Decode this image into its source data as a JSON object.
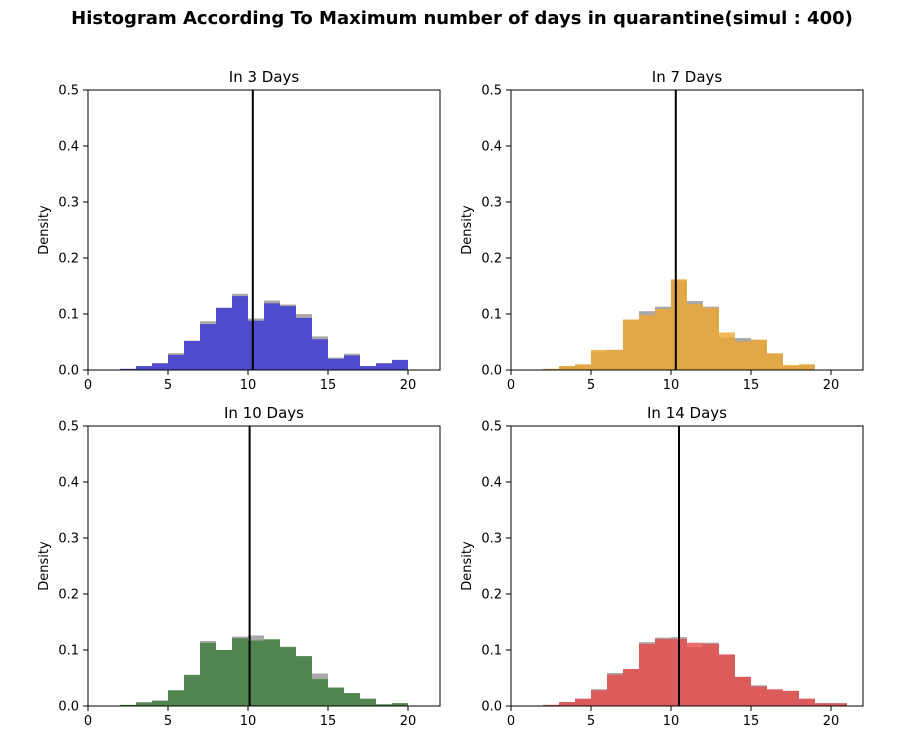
{
  "title": "Histogram According To Maximum number of days in quarantine(simul : 400)",
  "chart_data": [
    {
      "type": "bar",
      "title": "In 3 Days",
      "ylabel": "Density",
      "xlim": [
        0,
        22
      ],
      "ylim": [
        0,
        0.5
      ],
      "xticks": [
        0,
        5,
        10,
        15,
        20
      ],
      "yticks": [
        0.0,
        0.1,
        0.2,
        0.3,
        0.4,
        0.5
      ],
      "bin_edges": [
        1,
        2,
        3,
        4,
        5,
        6,
        7,
        8,
        9,
        10,
        11,
        12,
        13,
        14,
        15,
        16,
        17,
        18,
        19,
        20
      ],
      "series": [
        {
          "color": "#999999",
          "values": [
            0.0,
            0.002,
            0.007,
            0.012,
            0.03,
            0.052,
            0.087,
            0.111,
            0.136,
            0.092,
            0.124,
            0.117,
            0.1,
            0.06,
            0.022,
            0.029,
            0.007,
            0.012,
            0.018
          ]
        },
        {
          "color": "#3a33d6",
          "values": [
            0.0,
            0.002,
            0.007,
            0.012,
            0.027,
            0.052,
            0.082,
            0.111,
            0.132,
            0.088,
            0.119,
            0.114,
            0.093,
            0.055,
            0.02,
            0.026,
            0.007,
            0.012,
            0.018
          ]
        }
      ],
      "mean_line": 10.3
    },
    {
      "type": "bar",
      "title": "In 7 Days",
      "ylabel": "Density",
      "xlim": [
        0,
        22
      ],
      "ylim": [
        0,
        0.5
      ],
      "xticks": [
        0,
        5,
        10,
        15,
        20
      ],
      "yticks": [
        0.0,
        0.1,
        0.2,
        0.3,
        0.4,
        0.5
      ],
      "bin_edges": [
        1,
        2,
        3,
        4,
        5,
        6,
        7,
        8,
        9,
        10,
        11,
        12,
        13,
        14,
        15,
        16,
        17,
        18,
        19,
        20
      ],
      "series": [
        {
          "color": "#999999",
          "values": [
            0.0,
            0.002,
            0.007,
            0.01,
            0.033,
            0.036,
            0.09,
            0.105,
            0.113,
            0.16,
            0.123,
            0.113,
            0.058,
            0.057,
            0.054,
            0.029,
            0.007,
            0.01,
            0.0
          ]
        },
        {
          "color": "#f0a830",
          "values": [
            0.0,
            0.002,
            0.007,
            0.01,
            0.036,
            0.036,
            0.09,
            0.098,
            0.109,
            0.162,
            0.118,
            0.111,
            0.067,
            0.051,
            0.054,
            0.03,
            0.009,
            0.01,
            0.0
          ]
        }
      ],
      "mean_line": 10.3
    },
    {
      "type": "bar",
      "title": "In 10 Days",
      "ylabel": "Density",
      "xlim": [
        0,
        22
      ],
      "ylim": [
        0,
        0.5
      ],
      "xticks": [
        0,
        5,
        10,
        15,
        20
      ],
      "yticks": [
        0.0,
        0.1,
        0.2,
        0.3,
        0.4,
        0.5
      ],
      "bin_edges": [
        1,
        2,
        3,
        4,
        5,
        6,
        7,
        8,
        9,
        10,
        11,
        12,
        13,
        14,
        15,
        16,
        17,
        18,
        19,
        20
      ],
      "series": [
        {
          "color": "#999999",
          "values": [
            0.0,
            0.002,
            0.007,
            0.01,
            0.028,
            0.056,
            0.116,
            0.1,
            0.124,
            0.126,
            0.119,
            0.106,
            0.089,
            0.058,
            0.033,
            0.023,
            0.013,
            0.003,
            0.005
          ]
        },
        {
          "color": "#3b7d3b",
          "values": [
            0.0,
            0.002,
            0.006,
            0.009,
            0.028,
            0.055,
            0.113,
            0.1,
            0.121,
            0.117,
            0.119,
            0.105,
            0.089,
            0.048,
            0.033,
            0.023,
            0.013,
            0.003,
            0.005
          ]
        }
      ],
      "mean_line": 10.1
    },
    {
      "type": "bar",
      "title": "In 14 Days",
      "ylabel": "Density",
      "xlim": [
        0,
        22
      ],
      "ylim": [
        0,
        0.5
      ],
      "xticks": [
        0,
        5,
        10,
        15,
        20
      ],
      "yticks": [
        0.0,
        0.1,
        0.2,
        0.3,
        0.4,
        0.5
      ],
      "bin_edges": [
        1,
        2,
        3,
        4,
        5,
        6,
        7,
        8,
        9,
        10,
        11,
        12,
        13,
        14,
        15,
        16,
        17,
        18,
        19,
        20,
        21,
        22
      ],
      "series": [
        {
          "color": "#999999",
          "values": [
            0.0,
            0.002,
            0.007,
            0.013,
            0.03,
            0.059,
            0.066,
            0.114,
            0.122,
            0.123,
            0.105,
            0.113,
            0.092,
            0.052,
            0.037,
            0.028,
            0.027,
            0.013,
            0.005,
            0.005,
            0.0
          ]
        },
        {
          "color": "#e84848",
          "values": [
            0.0,
            0.002,
            0.007,
            0.013,
            0.028,
            0.056,
            0.066,
            0.111,
            0.12,
            0.12,
            0.113,
            0.111,
            0.092,
            0.052,
            0.035,
            0.03,
            0.027,
            0.013,
            0.005,
            0.005,
            0.0
          ]
        }
      ],
      "mean_line": 10.5
    }
  ]
}
